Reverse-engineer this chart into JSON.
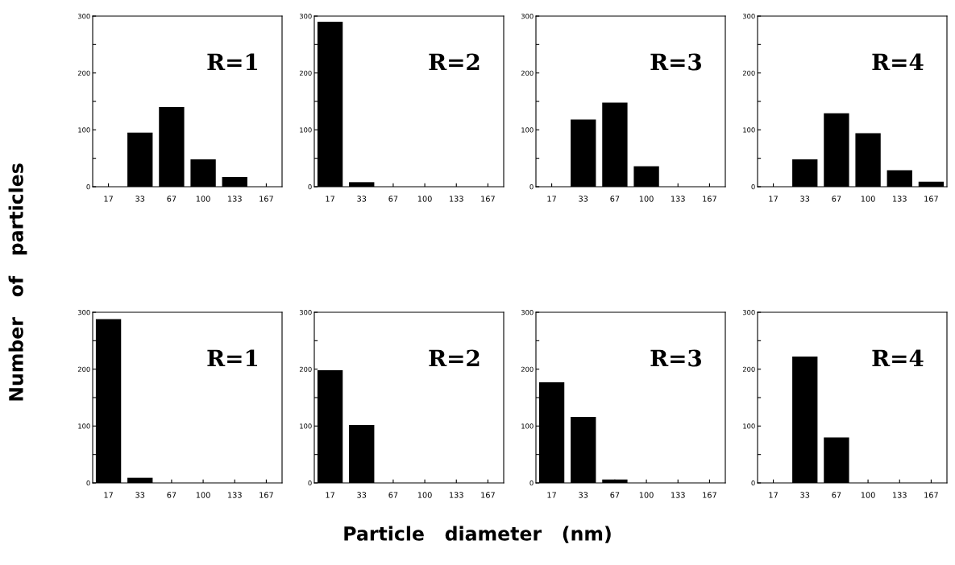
{
  "chart_data": [
    {
      "type": "bar",
      "categories": [
        "17",
        "33",
        "67",
        "100",
        "133",
        "167"
      ],
      "values": [
        0,
        95,
        140,
        48,
        17,
        0
      ],
      "color": "#000000",
      "ylim": [
        0,
        300
      ],
      "yticks": [
        0,
        {
          "value": 50,
          "label": null
        },
        100,
        {
          "value": 150,
          "label": null
        },
        200,
        {
          "value": 250,
          "label": null
        },
        300
      ],
      "annotations": [
        "R=1"
      ],
      "ylabel": "Number   of   particles",
      "xlabel": "Particle   diameter   (nm)",
      "grid": false
    },
    {
      "type": "bar",
      "categories": [
        "17",
        "33",
        "67",
        "100",
        "133",
        "167"
      ],
      "values": [
        290,
        8,
        0,
        0,
        0,
        0
      ],
      "color": "#000000",
      "ylim": [
        0,
        300
      ],
      "yticks": [
        0,
        {
          "value": 50,
          "label": null
        },
        100,
        {
          "value": 150,
          "label": null
        },
        200,
        {
          "value": 250,
          "label": null
        },
        300
      ],
      "annotations": [
        "R=2"
      ],
      "grid": false
    },
    {
      "type": "bar",
      "categories": [
        "17",
        "33",
        "67",
        "100",
        "133",
        "167"
      ],
      "values": [
        0,
        118,
        148,
        36,
        0,
        0
      ],
      "color": "#000000",
      "ylim": [
        0,
        300
      ],
      "yticks": [
        0,
        {
          "value": 50,
          "label": null
        },
        100,
        {
          "value": 150,
          "label": null
        },
        200,
        {
          "value": 250,
          "label": null
        },
        300
      ],
      "annotations": [
        "R=3"
      ],
      "grid": false
    },
    {
      "type": "bar",
      "categories": [
        "17",
        "33",
        "67",
        "100",
        "133",
        "167"
      ],
      "values": [
        0,
        48,
        129,
        94,
        29,
        9
      ],
      "color": "#000000",
      "ylim": [
        0,
        300
      ],
      "yticks": [
        0,
        {
          "value": 50,
          "label": null
        },
        100,
        {
          "value": 150,
          "label": null
        },
        200,
        {
          "value": 250,
          "label": null
        },
        300
      ],
      "annotations": [
        "R=4"
      ],
      "grid": false
    },
    {
      "type": "bar",
      "categories": [
        "17",
        "33",
        "67",
        "100",
        "133",
        "167"
      ],
      "values": [
        288,
        9,
        0,
        0,
        0,
        0
      ],
      "color": "#000000",
      "ylim": [
        0,
        300
      ],
      "yticks": [
        0,
        {
          "value": 50,
          "label": null
        },
        100,
        {
          "value": 150,
          "label": null
        },
        200,
        {
          "value": 250,
          "label": null
        },
        300
      ],
      "annotations": [
        "R=1"
      ],
      "grid": false
    },
    {
      "type": "bar",
      "categories": [
        "17",
        "33",
        "67",
        "100",
        "133",
        "167"
      ],
      "values": [
        198,
        102,
        0,
        0,
        0,
        0
      ],
      "color": "#000000",
      "ylim": [
        0,
        300
      ],
      "yticks": [
        0,
        {
          "value": 50,
          "label": null
        },
        100,
        {
          "value": 150,
          "label": null
        },
        200,
        {
          "value": 250,
          "label": null
        },
        300
      ],
      "annotations": [
        "R=2"
      ],
      "grid": false
    },
    {
      "type": "bar",
      "categories": [
        "17",
        "33",
        "67",
        "100",
        "133",
        "167"
      ],
      "values": [
        177,
        116,
        6,
        0,
        0,
        0
      ],
      "color": "#000000",
      "ylim": [
        0,
        300
      ],
      "yticks": [
        0,
        {
          "value": 50,
          "label": null
        },
        100,
        {
          "value": 150,
          "label": null
        },
        200,
        {
          "value": 250,
          "label": null
        },
        300
      ],
      "annotations": [
        "R=3"
      ],
      "grid": false
    },
    {
      "type": "bar",
      "categories": [
        "17",
        "33",
        "67",
        "100",
        "133",
        "167"
      ],
      "values": [
        0,
        222,
        80,
        0,
        0,
        0
      ],
      "color": "#000000",
      "ylim": [
        0,
        300
      ],
      "yticks": [
        0,
        {
          "value": 50,
          "label": null
        },
        100,
        {
          "value": 150,
          "label": null
        },
        200,
        {
          "value": 250,
          "label": null
        },
        300
      ],
      "annotations": [
        "R=4"
      ],
      "grid": false
    }
  ]
}
